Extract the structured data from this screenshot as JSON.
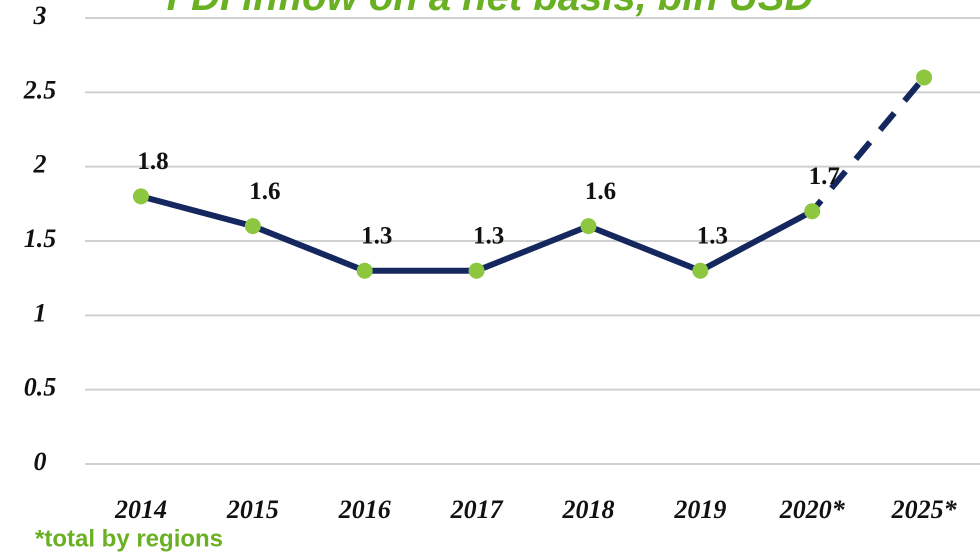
{
  "chart_data": {
    "type": "line",
    "title": "FDI inflow on a net basis, bln USD",
    "categories": [
      "2014",
      "2015",
      "2016",
      "2017",
      "2018",
      "2019",
      "2020*",
      "2025*"
    ],
    "series": [
      {
        "name": "FDI inflow",
        "color": "#14285f",
        "marker_color": "#8dc63f",
        "values": [
          1.8,
          1.6,
          1.3,
          1.3,
          1.6,
          1.3,
          1.7,
          2.6
        ],
        "data_labels": [
          true,
          true,
          true,
          true,
          true,
          true,
          true,
          false
        ]
      }
    ],
    "dashed_after": "2020*",
    "ylim": [
      0,
      3
    ],
    "yticks": [
      0,
      0.5,
      1,
      1.5,
      2,
      2.5,
      3
    ],
    "grid": true,
    "footnote": "*total by regions"
  }
}
